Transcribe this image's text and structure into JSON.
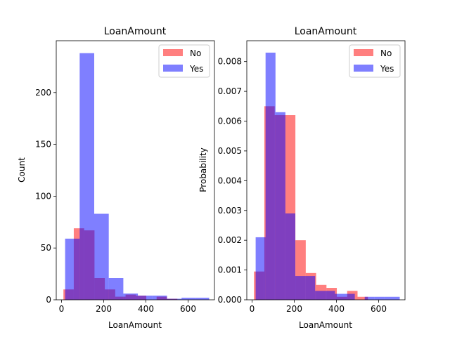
{
  "colors": {
    "no": "#ff0000",
    "yes": "#0000ff",
    "overlap": "#7f007f"
  },
  "chart_data": [
    {
      "type": "bar",
      "subtype": "overlaid-histogram",
      "title": "LoanAmount",
      "xlabel": "LoanAmount",
      "ylabel": "Count",
      "xlim": [
        -25,
        725
      ],
      "ylim": [
        0,
        250
      ],
      "xticks": [
        0,
        200,
        400,
        600
      ],
      "yticks": [
        0,
        50,
        100,
        150,
        200
      ],
      "legend": {
        "placement": "top-right",
        "entries": [
          "No",
          "Yes"
        ]
      },
      "grid": false,
      "series": [
        {
          "name": "No",
          "color": "#ff0000",
          "bins": [
            {
              "start": 9,
              "end": 58.1,
              "value": 10
            },
            {
              "start": 58.1,
              "end": 107.2,
              "value": 69
            },
            {
              "start": 107.2,
              "end": 156.3,
              "value": 67
            },
            {
              "start": 156.3,
              "end": 205.4,
              "value": 21
            },
            {
              "start": 205.4,
              "end": 254.5,
              "value": 10
            },
            {
              "start": 254.5,
              "end": 303.6,
              "value": 3
            },
            {
              "start": 303.6,
              "end": 352.7,
              "value": 5
            },
            {
              "start": 352.7,
              "end": 401.8,
              "value": 4
            },
            {
              "start": 401.8,
              "end": 450.9,
              "value": 0
            },
            {
              "start": 450.9,
              "end": 500.0,
              "value": 3
            },
            {
              "start": 500.0,
              "end": 549.1,
              "value": 1
            },
            {
              "start": 549.1,
              "end": 600,
              "value": 0
            }
          ]
        },
        {
          "name": "Yes",
          "color": "#0000ff",
          "bins": [
            {
              "start": 17,
              "end": 86,
              "value": 59
            },
            {
              "start": 86,
              "end": 155,
              "value": 238
            },
            {
              "start": 155,
              "end": 224,
              "value": 83
            },
            {
              "start": 224,
              "end": 293,
              "value": 21
            },
            {
              "start": 293,
              "end": 362,
              "value": 6
            },
            {
              "start": 362,
              "end": 431,
              "value": 4
            },
            {
              "start": 431,
              "end": 500,
              "value": 4
            },
            {
              "start": 500,
              "end": 569,
              "value": 1
            },
            {
              "start": 569,
              "end": 638,
              "value": 2
            },
            {
              "start": 638,
              "end": 700,
              "value": 2
            }
          ]
        }
      ]
    },
    {
      "type": "bar",
      "subtype": "overlaid-histogram",
      "title": "LoanAmount",
      "xlabel": "LoanAmount",
      "ylabel": "Probability",
      "xlim": [
        -25,
        725
      ],
      "ylim": [
        0,
        0.0087
      ],
      "xticks": [
        0,
        200,
        400,
        600
      ],
      "yticks": [
        0.0,
        0.001,
        0.002,
        0.003,
        0.004,
        0.005,
        0.006,
        0.007,
        0.008
      ],
      "ytick_labels": [
        "0.000",
        "0.001",
        "0.002",
        "0.003",
        "0.004",
        "0.005",
        "0.006",
        "0.007",
        "0.008"
      ],
      "legend": {
        "placement": "top-right",
        "entries": [
          "No",
          "Yes"
        ]
      },
      "grid": false,
      "series": [
        {
          "name": "No",
          "color": "#ff0000",
          "bins": [
            {
              "start": 9,
              "end": 58.1,
              "value": 0.00095
            },
            {
              "start": 58.1,
              "end": 107.2,
              "value": 0.0065
            },
            {
              "start": 107.2,
              "end": 156.3,
              "value": 0.0062
            },
            {
              "start": 156.3,
              "end": 205.4,
              "value": 0.0062
            },
            {
              "start": 205.4,
              "end": 254.5,
              "value": 0.002
            },
            {
              "start": 254.5,
              "end": 303.6,
              "value": 0.0009
            },
            {
              "start": 303.6,
              "end": 352.7,
              "value": 0.0005
            },
            {
              "start": 352.7,
              "end": 401.8,
              "value": 0.0004
            },
            {
              "start": 401.8,
              "end": 450.9,
              "value": 0.0001
            },
            {
              "start": 450.9,
              "end": 500.0,
              "value": 0.0003
            },
            {
              "start": 500.0,
              "end": 549.1,
              "value": 0.0001
            },
            {
              "start": 549.1,
              "end": 600,
              "value": 0
            }
          ]
        },
        {
          "name": "Yes",
          "color": "#0000ff",
          "bins": [
            {
              "start": 17,
              "end": 64,
              "value": 0.0021
            },
            {
              "start": 64,
              "end": 111,
              "value": 0.0083
            },
            {
              "start": 111,
              "end": 158,
              "value": 0.0063
            },
            {
              "start": 158,
              "end": 205,
              "value": 0.0029
            },
            {
              "start": 205,
              "end": 252,
              "value": 0.0008
            },
            {
              "start": 252,
              "end": 299,
              "value": 0.0008
            },
            {
              "start": 299,
              "end": 346,
              "value": 0.0003
            },
            {
              "start": 346,
              "end": 393,
              "value": 0.0003
            },
            {
              "start": 393,
              "end": 440,
              "value": 0.0002
            },
            {
              "start": 440,
              "end": 487,
              "value": 0.0002
            },
            {
              "start": 487,
              "end": 534,
              "value": 0
            },
            {
              "start": 534,
              "end": 581,
              "value": 0.0001
            },
            {
              "start": 581,
              "end": 628,
              "value": 0.0001
            },
            {
              "start": 628,
              "end": 700,
              "value": 0.0001
            }
          ]
        }
      ]
    }
  ]
}
